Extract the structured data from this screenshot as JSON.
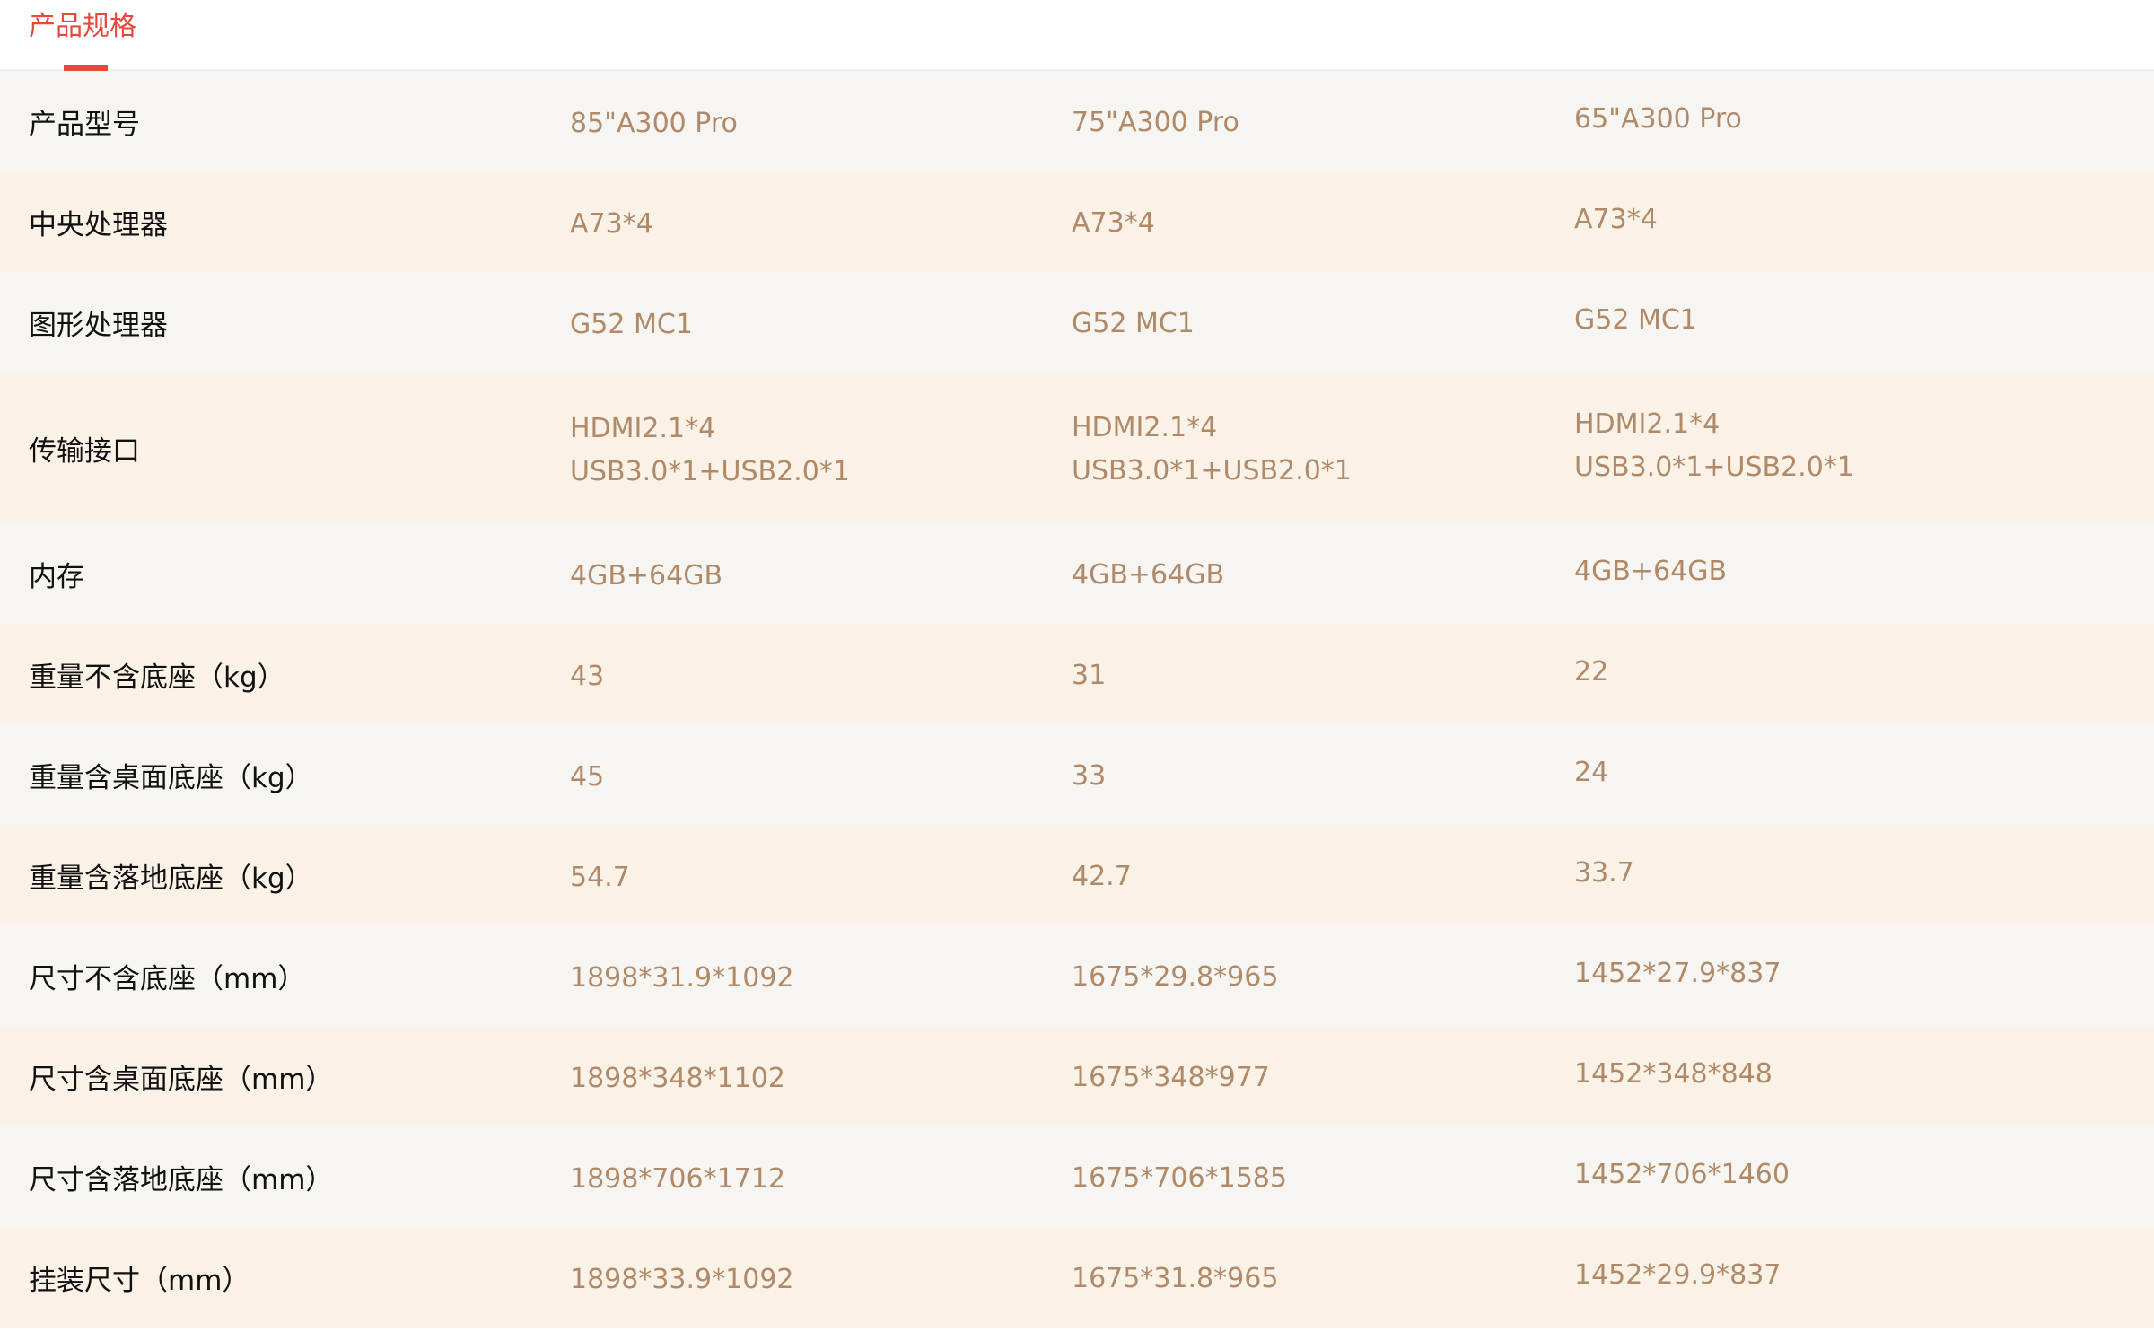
{
  "tab": {
    "label": "产品规格"
  },
  "rows": [
    {
      "label": "产品型号",
      "values": [
        "85\"A300 Pro",
        "75\"A300 Pro",
        "65\"A300 Pro"
      ]
    },
    {
      "label": "中央处理器",
      "values": [
        "A73*4",
        "A73*4",
        "A73*4"
      ]
    },
    {
      "label": "图形处理器",
      "values": [
        "G52 MC1",
        "G52 MC1",
        "G52 MC1"
      ]
    },
    {
      "label": "传输接口",
      "values": [
        "HDMI2.1*4\nUSB3.0*1+USB2.0*1",
        "HDMI2.1*4\nUSB3.0*1+USB2.0*1",
        "HDMI2.1*4\nUSB3.0*1+USB2.0*1"
      ]
    },
    {
      "label": "内存",
      "values": [
        "4GB+64GB",
        "4GB+64GB",
        "4GB+64GB"
      ]
    },
    {
      "label": "重量不含底座（kg）",
      "values": [
        "43",
        "31",
        "22"
      ]
    },
    {
      "label": "重量含桌面底座（kg）",
      "values": [
        "45",
        "33",
        "24"
      ]
    },
    {
      "label": "重量含落地底座（kg）",
      "values": [
        "54.7",
        "42.7",
        "33.7"
      ]
    },
    {
      "label": "尺寸不含底座（mm）",
      "values": [
        "1898*31.9*1092",
        "1675*29.8*965",
        "1452*27.9*837"
      ]
    },
    {
      "label": "尺寸含桌面底座（mm）",
      "values": [
        "1898*348*1102",
        "1675*348*977",
        "1452*348*848"
      ]
    },
    {
      "label": "尺寸含落地底座（mm）",
      "values": [
        "1898*706*1712",
        "1675*706*1585",
        "1452*706*1460"
      ]
    },
    {
      "label": "挂装尺寸（mm）",
      "values": [
        "1898*33.9*1092",
        "1675*31.8*965",
        "1452*29.9*837"
      ]
    }
  ],
  "colors": {
    "accent": "#e5493a",
    "value_text": "#b08a68",
    "row_a": "#f6f5f2",
    "row_b": "#faf1e7"
  }
}
